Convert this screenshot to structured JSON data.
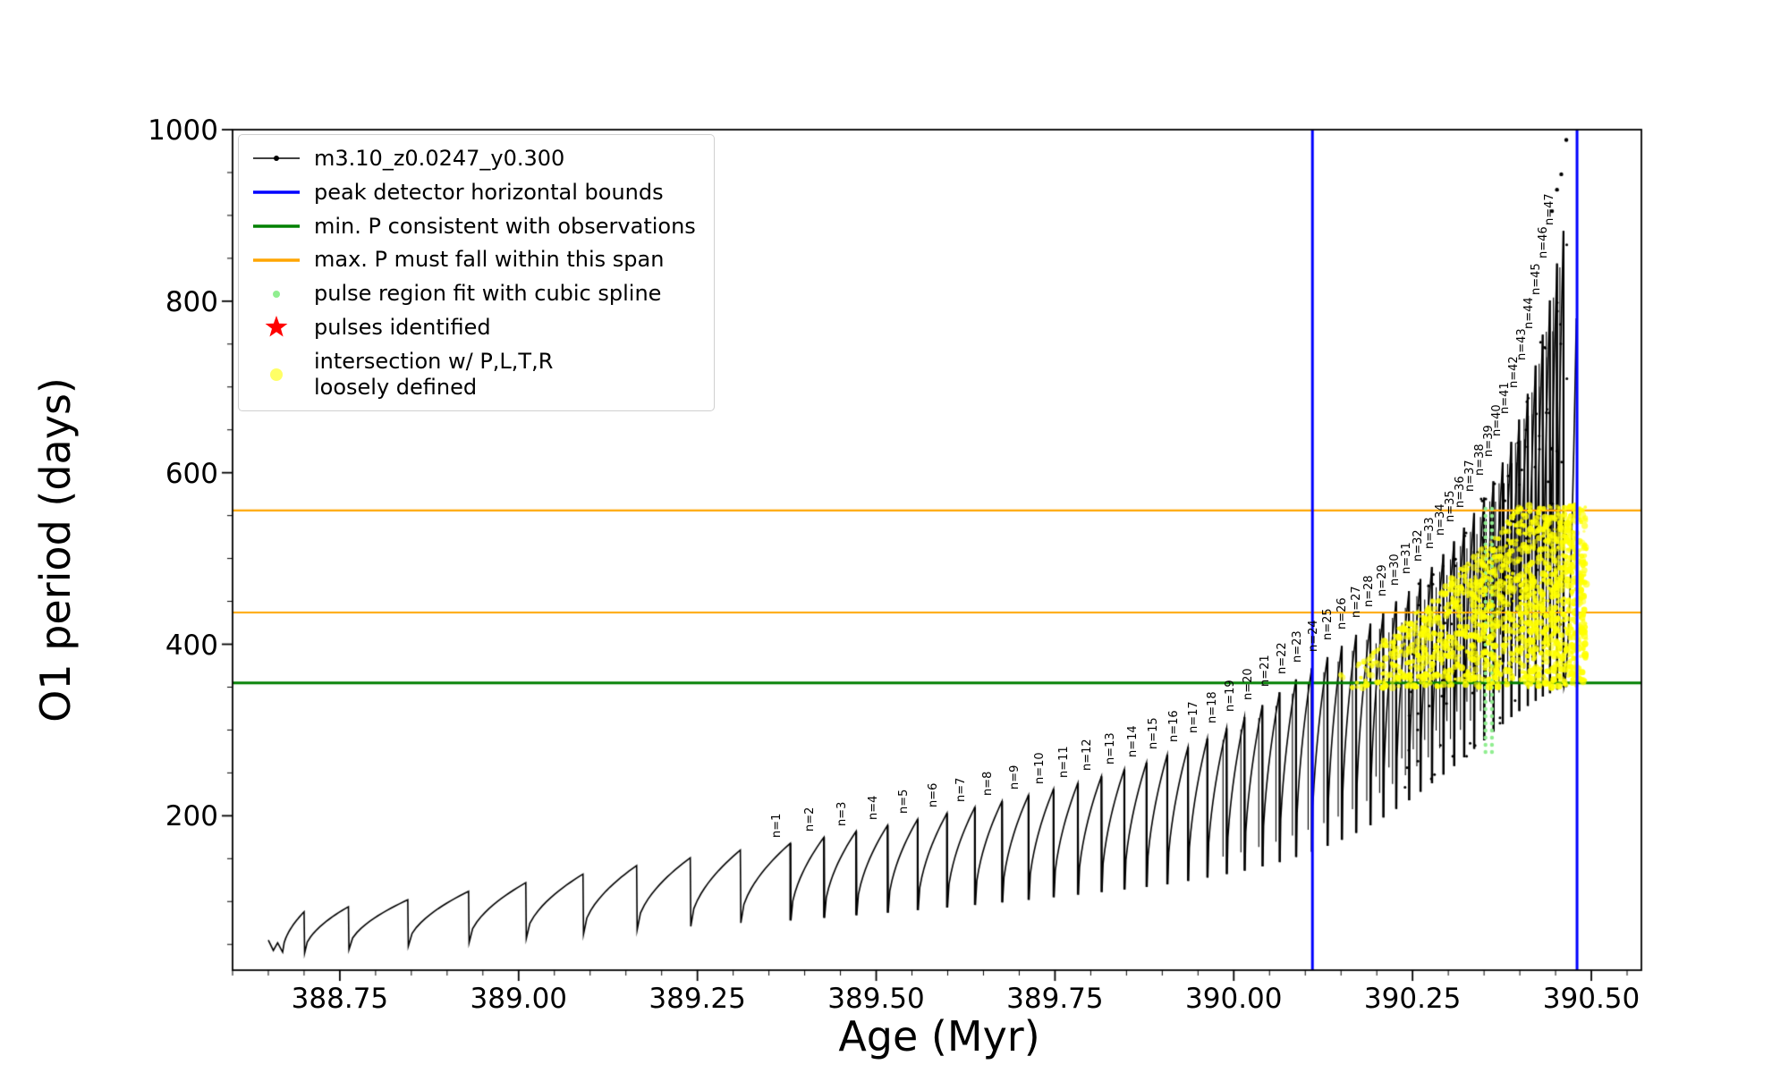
{
  "chart_data": {
    "type": "line",
    "title": "",
    "xlabel": "Age (Myr)",
    "ylabel": "O1 period (days)",
    "xlim": [
      388.6,
      390.57
    ],
    "ylim": [
      20,
      1000
    ],
    "x_ticks": {
      "values": [
        388.75,
        389.0,
        389.25,
        389.5,
        389.75,
        390.0,
        390.25,
        390.5
      ],
      "labels": [
        "388.75",
        "389.00",
        "389.25",
        "389.50",
        "389.75",
        "390.00",
        "390.25",
        "390.50"
      ],
      "minor_step": 0.05
    },
    "y_ticks": {
      "values": [
        200,
        400,
        600,
        800,
        1000
      ],
      "labels": [
        "200",
        "400",
        "600",
        "800",
        "1000"
      ],
      "minor_step": 50
    },
    "series_label": "m3.10_z0.0247_y0.300",
    "series_color": "#000000",
    "lead_in": [
      [
        388.65,
        55
      ],
      [
        388.657,
        43
      ],
      [
        388.663,
        52
      ],
      [
        388.67,
        41
      ]
    ],
    "pre_pulse_fields": [
      "x_Myr",
      "peak_period_days",
      "base_period_days"
    ],
    "pre_pulses": [
      [
        388.7,
        88,
        40
      ],
      [
        388.762,
        94,
        44
      ],
      [
        388.845,
        102,
        48
      ],
      [
        388.93,
        112,
        52
      ],
      [
        389.01,
        122,
        57
      ],
      [
        389.09,
        132,
        62
      ],
      [
        389.165,
        142,
        67
      ],
      [
        389.24,
        151,
        71
      ],
      [
        389.31,
        160,
        75
      ]
    ],
    "pulse_fields": [
      "n",
      "x_Myr",
      "peak_period_days",
      "base_period_days"
    ],
    "pulse_label_prefix": "n=",
    "pulses": [
      [
        1,
        389.38,
        168,
        78
      ],
      [
        2,
        389.427,
        175,
        81
      ],
      [
        3,
        389.472,
        182,
        84
      ],
      [
        4,
        389.516,
        189,
        87
      ],
      [
        5,
        389.558,
        196,
        90
      ],
      [
        6,
        389.599,
        203,
        93
      ],
      [
        7,
        389.638,
        210,
        96
      ],
      [
        8,
        389.676,
        217,
        99
      ],
      [
        9,
        389.713,
        224,
        102
      ],
      [
        10,
        389.748,
        231,
        105
      ],
      [
        11,
        389.782,
        238,
        108
      ],
      [
        12,
        389.815,
        246,
        111
      ],
      [
        13,
        389.847,
        254,
        114
      ],
      [
        14,
        389.878,
        262,
        117
      ],
      [
        15,
        389.907,
        271,
        120
      ],
      [
        16,
        389.936,
        280,
        124
      ],
      [
        17,
        389.963,
        290,
        128
      ],
      [
        18,
        389.99,
        302,
        132
      ],
      [
        19,
        390.015,
        315,
        136
      ],
      [
        20,
        390.04,
        329,
        141
      ],
      [
        21,
        390.064,
        344,
        146
      ],
      [
        22,
        390.087,
        359,
        152
      ],
      [
        23,
        390.109,
        372,
        158
      ],
      [
        24,
        390.131,
        385,
        165
      ],
      [
        25,
        390.151,
        398,
        172
      ],
      [
        26,
        390.171,
        411,
        180
      ],
      [
        27,
        390.191,
        424,
        189
      ],
      [
        28,
        390.209,
        437,
        198
      ],
      [
        29,
        390.227,
        450,
        208
      ],
      [
        30,
        390.245,
        462,
        218
      ],
      [
        31,
        390.261,
        476,
        228
      ],
      [
        32,
        390.277,
        490,
        238
      ],
      [
        33,
        390.293,
        505,
        248
      ],
      [
        34,
        390.308,
        520,
        258
      ],
      [
        35,
        390.322,
        536,
        268
      ],
      [
        36,
        390.336,
        553,
        278
      ],
      [
        37,
        390.35,
        571,
        288
      ],
      [
        38,
        390.363,
        590,
        298
      ],
      [
        39,
        390.376,
        612,
        307
      ],
      [
        40,
        390.388,
        636,
        315
      ],
      [
        41,
        390.399,
        662,
        322
      ],
      [
        42,
        390.411,
        692,
        328
      ],
      [
        43,
        390.422,
        725,
        334
      ],
      [
        44,
        390.432,
        761,
        339
      ],
      [
        45,
        390.442,
        801,
        343
      ],
      [
        46,
        390.452,
        844,
        347
      ],
      [
        47,
        390.461,
        882,
        350
      ]
    ],
    "final_rise": {
      "x_start": 390.461,
      "y_start": 350,
      "x_end": 390.479,
      "y_end": 780
    },
    "extra_points": [
      [
        390.452,
        930
      ],
      [
        390.458,
        948
      ],
      [
        390.465,
        988
      ],
      [
        390.445,
        905
      ]
    ],
    "peak_detector_bounds": {
      "color": "#0000ff",
      "x_values": [
        390.11,
        390.48
      ]
    },
    "min_P_line": {
      "color": "#008000",
      "y": 355
    },
    "max_P_span": {
      "color": "#ffa500",
      "y_values": [
        437,
        556
      ]
    },
    "spline_fit_strips": {
      "color": "#90ee90",
      "x_values": [
        390.352,
        390.361
      ],
      "y_range": [
        272,
        558
      ]
    },
    "intersection_region": {
      "color": "#ffff00",
      "x_range": [
        390.135,
        390.493
      ],
      "y_bottom": 349,
      "y_top_range": [
        362,
        562
      ],
      "n_dots": 1600,
      "seed": 7
    }
  },
  "legend": {
    "items": [
      {
        "type": "line-marker",
        "color": "#000000",
        "label": "m3.10_z0.0247_y0.300"
      },
      {
        "type": "line",
        "color": "#0000ff",
        "label": "peak detector horizontal bounds"
      },
      {
        "type": "line",
        "color": "#008000",
        "label": "min. P consistent with observations"
      },
      {
        "type": "line",
        "color": "#ffa500",
        "label": "max. P must fall within this span"
      },
      {
        "type": "dot-small",
        "color": "#90ee90",
        "label": "pulse region fit with cubic spline"
      },
      {
        "type": "star",
        "color": "#ff0000",
        "label": "pulses identified"
      },
      {
        "type": "dot-large",
        "color": "#ffff66",
        "label": "intersection w/ P,L,T,R\nloosely defined"
      }
    ]
  }
}
